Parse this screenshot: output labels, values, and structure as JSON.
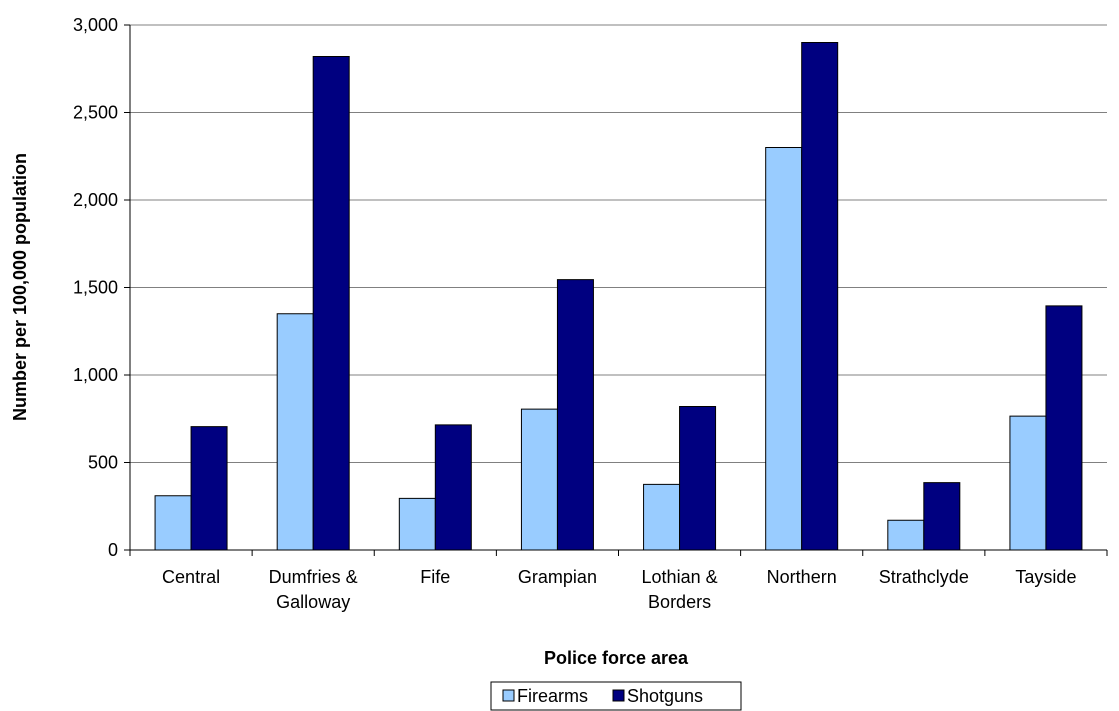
{
  "chart_data": {
    "type": "bar",
    "categories": [
      "Central",
      "Dumfries & Galloway",
      "Fife",
      "Grampian",
      "Lothian & Borders",
      "Northern",
      "Strathclyde",
      "Tayside"
    ],
    "category_lines": [
      [
        "Central"
      ],
      [
        "Dumfries &",
        "Galloway"
      ],
      [
        "Fife"
      ],
      [
        "Grampian"
      ],
      [
        "Lothian &",
        "Borders"
      ],
      [
        "Northern"
      ],
      [
        "Strathclyde"
      ],
      [
        "Tayside"
      ]
    ],
    "series": [
      {
        "name": "Firearms",
        "color": "#99CCFF",
        "values": [
          310,
          1350,
          295,
          805,
          375,
          2300,
          170,
          765
        ]
      },
      {
        "name": "Shotguns",
        "color": "#000080",
        "values": [
          705,
          2820,
          715,
          1545,
          820,
          2900,
          385,
          1395
        ]
      }
    ],
    "title": "",
    "xlabel": "Police force area",
    "ylabel": "Number per 100,000 population",
    "ylim": [
      0,
      3000
    ],
    "yticks": [
      0,
      500,
      1000,
      1500,
      2000,
      2500,
      3000
    ],
    "ytick_labels": [
      "0",
      "500",
      "1,000",
      "1,500",
      "2,000",
      "2,500",
      "3,000"
    ],
    "grid": true,
    "legend": "bottom-center"
  }
}
